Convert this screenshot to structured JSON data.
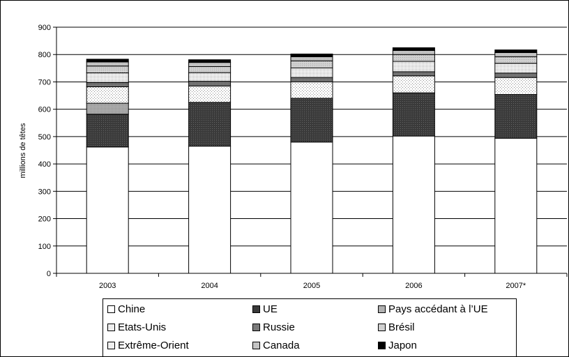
{
  "chart_data": {
    "type": "bar",
    "stacked": true,
    "title": "",
    "xlabel": "",
    "ylabel": "millions de têtes",
    "ylim": [
      0,
      900
    ],
    "yticks": [
      0,
      100,
      200,
      300,
      400,
      500,
      600,
      700,
      800,
      900
    ],
    "grid": true,
    "legend_position": "bottom",
    "categories": [
      "2003",
      "2004",
      "2005",
      "2006",
      "2007*"
    ],
    "series": [
      {
        "name": "Chine",
        "color": "#ffffff",
        "pattern": "none",
        "values": [
          462,
          465,
          480,
          502,
          494
        ]
      },
      {
        "name": "UE",
        "color": "#3a3a3a",
        "pattern": "dark",
        "values": [
          120,
          160,
          160,
          158,
          160
        ]
      },
      {
        "name": "Pays accédant à l’UE",
        "color": "#b8b8b8",
        "pattern": "mid",
        "values": [
          40,
          0,
          0,
          0,
          0
        ]
      },
      {
        "name": "Etats-Unis",
        "color": "#ffffff",
        "pattern": "dots",
        "values": [
          60,
          60,
          60,
          62,
          62
        ]
      },
      {
        "name": "Russie",
        "color": "#7a7a7a",
        "pattern": "grey",
        "values": [
          16,
          17,
          16,
          15,
          16
        ]
      },
      {
        "name": "Extrême-Orient",
        "color": "#ffffff",
        "pattern": "dense",
        "values": [
          35,
          32,
          35,
          38,
          36
        ]
      },
      {
        "name": "Brésil",
        "color": "#d0d0d0",
        "pattern": "light",
        "values": [
          25,
          22,
          26,
          25,
          24
        ]
      },
      {
        "name": "Canada",
        "color": "#c4c4c4",
        "pattern": "light2",
        "values": [
          15,
          15,
          15,
          15,
          15
        ]
      },
      {
        "name": "Japon",
        "color": "#000000",
        "pattern": "black",
        "values": [
          10,
          10,
          10,
          10,
          10
        ]
      }
    ]
  },
  "legend_rows": [
    [
      "Chine",
      "UE",
      "Pays accédant à l’UE"
    ],
    [
      "Etats-Unis",
      "Russie",
      "Brésil"
    ],
    [
      "Extrême-Orient",
      "Canada",
      "Japon"
    ]
  ]
}
